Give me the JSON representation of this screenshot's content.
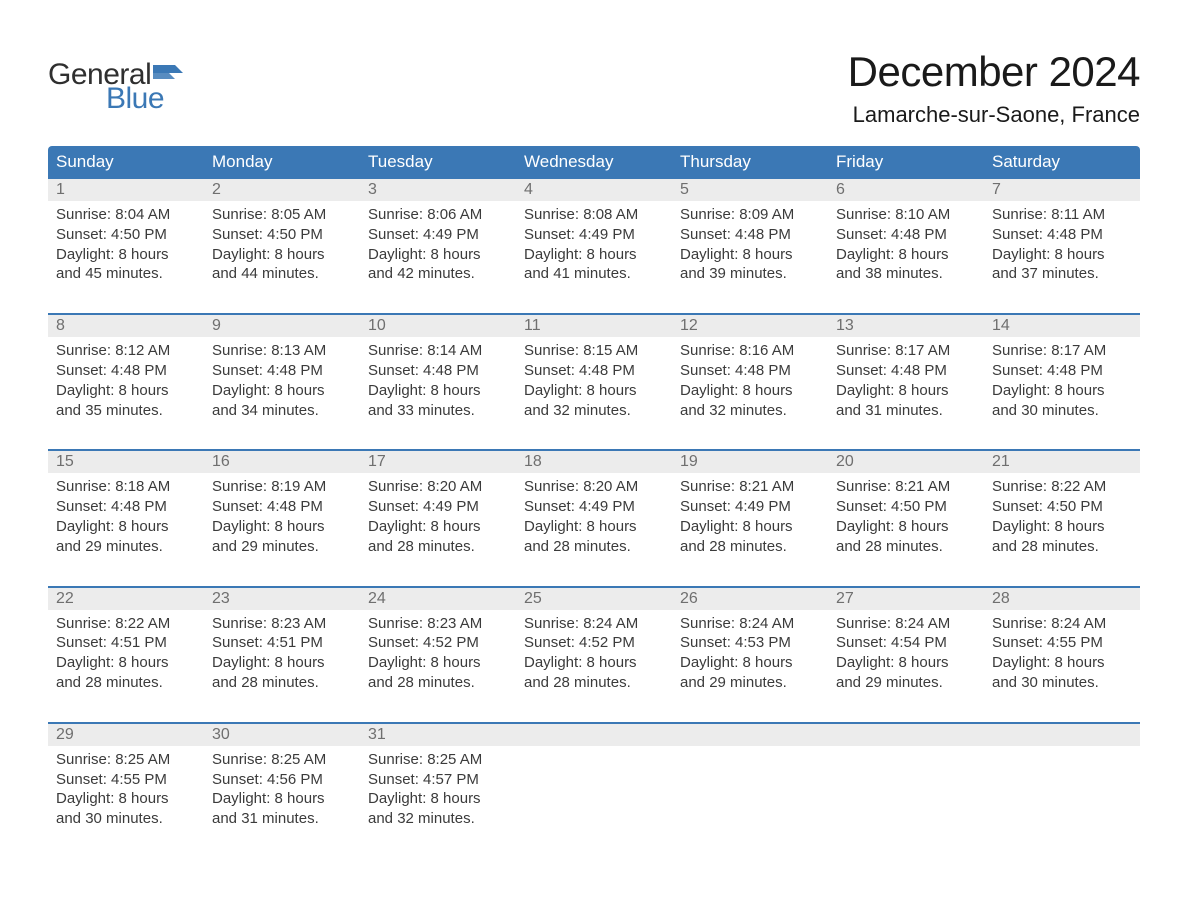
{
  "brand": {
    "word1": "General",
    "word2": "Blue",
    "flag_color": "#3b78b5"
  },
  "title": "December 2024",
  "location": "Lamarche-sur-Saone, France",
  "colors": {
    "header_bg": "#3b78b5",
    "header_text": "#ffffff",
    "daynum_bg": "#ececec",
    "daynum_text": "#6f6f6f",
    "body_text": "#3b3b3b",
    "rule": "#3b78b5",
    "page_bg": "#ffffff"
  },
  "day_headers": [
    "Sunday",
    "Monday",
    "Tuesday",
    "Wednesday",
    "Thursday",
    "Friday",
    "Saturday"
  ],
  "weeks": [
    [
      {
        "n": "1",
        "sr": "8:04 AM",
        "ss": "4:50 PM",
        "dl": "8 hours and 45 minutes."
      },
      {
        "n": "2",
        "sr": "8:05 AM",
        "ss": "4:50 PM",
        "dl": "8 hours and 44 minutes."
      },
      {
        "n": "3",
        "sr": "8:06 AM",
        "ss": "4:49 PM",
        "dl": "8 hours and 42 minutes."
      },
      {
        "n": "4",
        "sr": "8:08 AM",
        "ss": "4:49 PM",
        "dl": "8 hours and 41 minutes."
      },
      {
        "n": "5",
        "sr": "8:09 AM",
        "ss": "4:48 PM",
        "dl": "8 hours and 39 minutes."
      },
      {
        "n": "6",
        "sr": "8:10 AM",
        "ss": "4:48 PM",
        "dl": "8 hours and 38 minutes."
      },
      {
        "n": "7",
        "sr": "8:11 AM",
        "ss": "4:48 PM",
        "dl": "8 hours and 37 minutes."
      }
    ],
    [
      {
        "n": "8",
        "sr": "8:12 AM",
        "ss": "4:48 PM",
        "dl": "8 hours and 35 minutes."
      },
      {
        "n": "9",
        "sr": "8:13 AM",
        "ss": "4:48 PM",
        "dl": "8 hours and 34 minutes."
      },
      {
        "n": "10",
        "sr": "8:14 AM",
        "ss": "4:48 PM",
        "dl": "8 hours and 33 minutes."
      },
      {
        "n": "11",
        "sr": "8:15 AM",
        "ss": "4:48 PM",
        "dl": "8 hours and 32 minutes."
      },
      {
        "n": "12",
        "sr": "8:16 AM",
        "ss": "4:48 PM",
        "dl": "8 hours and 32 minutes."
      },
      {
        "n": "13",
        "sr": "8:17 AM",
        "ss": "4:48 PM",
        "dl": "8 hours and 31 minutes."
      },
      {
        "n": "14",
        "sr": "8:17 AM",
        "ss": "4:48 PM",
        "dl": "8 hours and 30 minutes."
      }
    ],
    [
      {
        "n": "15",
        "sr": "8:18 AM",
        "ss": "4:48 PM",
        "dl": "8 hours and 29 minutes."
      },
      {
        "n": "16",
        "sr": "8:19 AM",
        "ss": "4:48 PM",
        "dl": "8 hours and 29 minutes."
      },
      {
        "n": "17",
        "sr": "8:20 AM",
        "ss": "4:49 PM",
        "dl": "8 hours and 28 minutes."
      },
      {
        "n": "18",
        "sr": "8:20 AM",
        "ss": "4:49 PM",
        "dl": "8 hours and 28 minutes."
      },
      {
        "n": "19",
        "sr": "8:21 AM",
        "ss": "4:49 PM",
        "dl": "8 hours and 28 minutes."
      },
      {
        "n": "20",
        "sr": "8:21 AM",
        "ss": "4:50 PM",
        "dl": "8 hours and 28 minutes."
      },
      {
        "n": "21",
        "sr": "8:22 AM",
        "ss": "4:50 PM",
        "dl": "8 hours and 28 minutes."
      }
    ],
    [
      {
        "n": "22",
        "sr": "8:22 AM",
        "ss": "4:51 PM",
        "dl": "8 hours and 28 minutes."
      },
      {
        "n": "23",
        "sr": "8:23 AM",
        "ss": "4:51 PM",
        "dl": "8 hours and 28 minutes."
      },
      {
        "n": "24",
        "sr": "8:23 AM",
        "ss": "4:52 PM",
        "dl": "8 hours and 28 minutes."
      },
      {
        "n": "25",
        "sr": "8:24 AM",
        "ss": "4:52 PM",
        "dl": "8 hours and 28 minutes."
      },
      {
        "n": "26",
        "sr": "8:24 AM",
        "ss": "4:53 PM",
        "dl": "8 hours and 29 minutes."
      },
      {
        "n": "27",
        "sr": "8:24 AM",
        "ss": "4:54 PM",
        "dl": "8 hours and 29 minutes."
      },
      {
        "n": "28",
        "sr": "8:24 AM",
        "ss": "4:55 PM",
        "dl": "8 hours and 30 minutes."
      }
    ],
    [
      {
        "n": "29",
        "sr": "8:25 AM",
        "ss": "4:55 PM",
        "dl": "8 hours and 30 minutes."
      },
      {
        "n": "30",
        "sr": "8:25 AM",
        "ss": "4:56 PM",
        "dl": "8 hours and 31 minutes."
      },
      {
        "n": "31",
        "sr": "8:25 AM",
        "ss": "4:57 PM",
        "dl": "8 hours and 32 minutes."
      },
      null,
      null,
      null,
      null
    ]
  ],
  "labels": {
    "sunrise": "Sunrise:",
    "sunset": "Sunset:",
    "daylight": "Daylight:"
  }
}
